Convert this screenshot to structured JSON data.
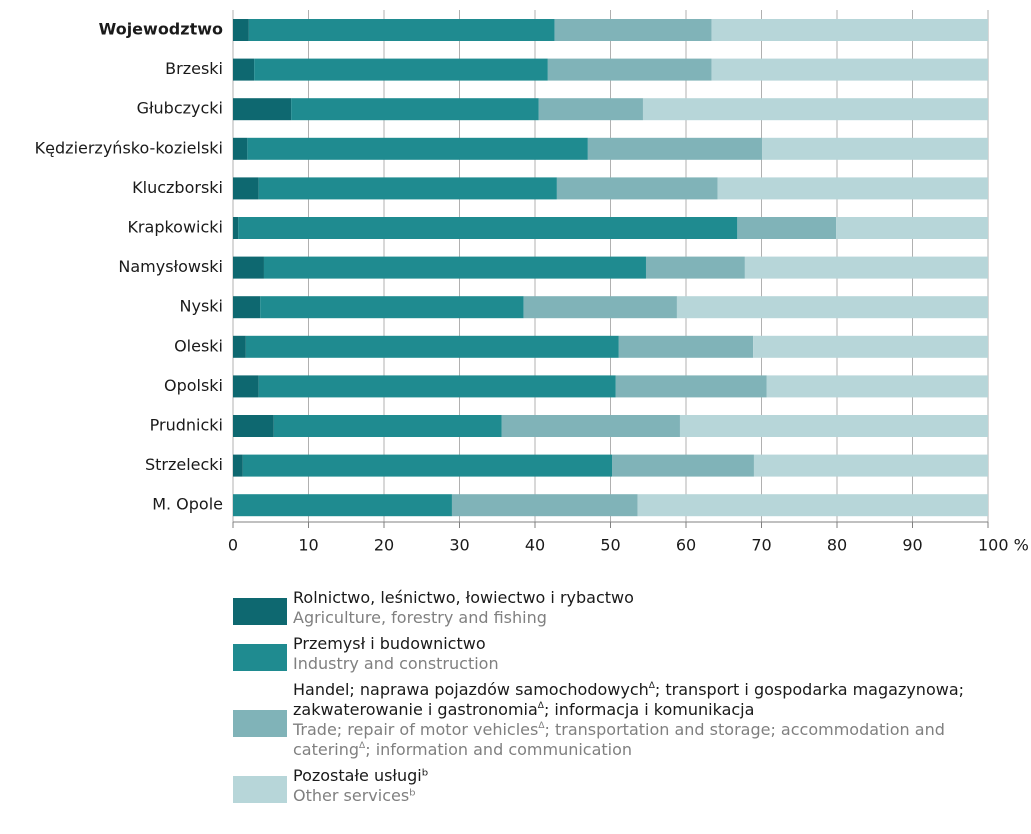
{
  "chart_data": {
    "type": "stacked_barh",
    "categories": [
      "Wojewodztwo",
      "Brzeski",
      "Głubczycki",
      "Kędzierzyńsko-kozielski",
      "Kluczborski",
      "Krapkowicki",
      "Namysłowski",
      "Nyski",
      "Oleski",
      "Opolski",
      "Prudnicki",
      "Strzelecki",
      "M. Opole"
    ],
    "series": [
      {
        "name": "Rolnictwo, leśnictwo, łowiectwo i rybactwo",
        "name_en": "Agriculture, forestry and fishing",
        "color": "#0e6870",
        "values": [
          2.1,
          2.8,
          7.7,
          1.9,
          3.4,
          0.7,
          4.1,
          3.6,
          1.7,
          3.4,
          5.4,
          1.3,
          0
        ]
      },
      {
        "name": "Przemysł i budownictwo",
        "name_en": "Industry and construction",
        "color": "#1f8b90",
        "values": [
          40.5,
          38.9,
          32.8,
          45.1,
          39.5,
          66.1,
          50.6,
          34.9,
          49.4,
          47.3,
          30.2,
          48.9,
          29.0
        ]
      },
      {
        "name": "Handel; naprawa pojazdów samochodowychΔ; transport i gospodarka magazynowa; zakwaterowanie i gastronomiaΔ; informacja i komunikacja",
        "name_en": "Trade; repair of motor vehiclesΔ; transportation and storage; accommodation and cateringΔ; information and communication",
        "color": "#80b3b8",
        "values": [
          20.8,
          21.7,
          13.8,
          23.1,
          21.3,
          13.1,
          13.1,
          20.3,
          17.8,
          20.0,
          23.6,
          18.8,
          24.6
        ]
      },
      {
        "name": "Pozostałe usługiᵇ",
        "name_en": "Other servicesᵇ",
        "color": "#b7d6d9",
        "values": [
          36.6,
          36.6,
          45.7,
          29.9,
          35.8,
          20.1,
          32.2,
          41.2,
          31.1,
          29.3,
          40.8,
          31.0,
          46.4
        ]
      }
    ],
    "xlim": [
      0,
      100
    ],
    "xticks": [
      0,
      10,
      20,
      30,
      40,
      50,
      60,
      70,
      80,
      90,
      {
        "value": 100,
        "label": "100 %"
      }
    ],
    "grid": true
  }
}
